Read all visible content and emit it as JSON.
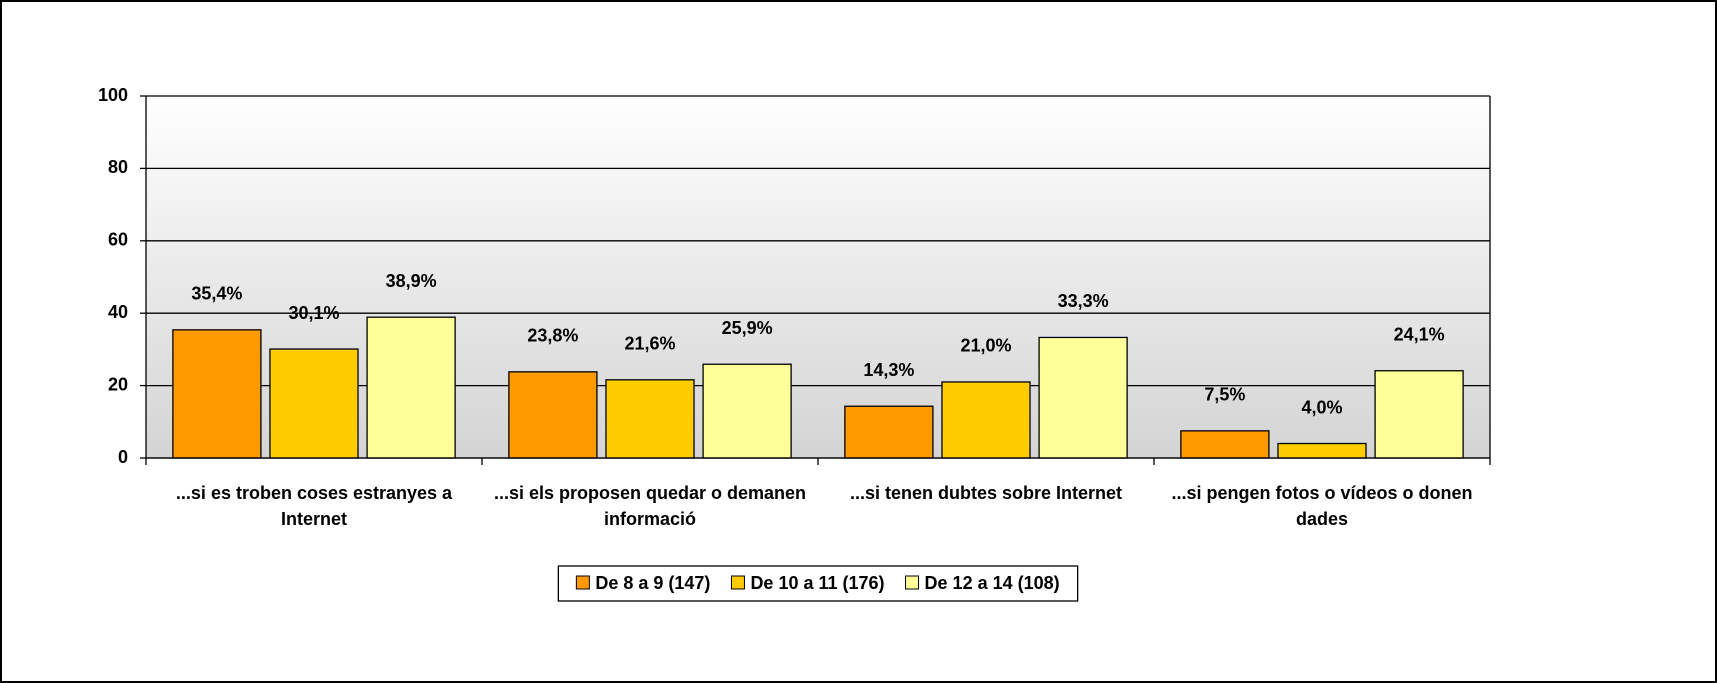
{
  "chart_data": {
    "type": "bar",
    "categories": [
      "...si es troben coses estranyes a Internet",
      "...si els proposen quedar o demanen informació",
      "...si tenen dubtes sobre Internet",
      "...si pengen fotos o vídeos o donen dades"
    ],
    "series": [
      {
        "name": "De 8 a 9 (147)",
        "color": "#ff9900",
        "values": [
          35.4,
          23.8,
          14.3,
          7.5
        ],
        "value_labels": [
          "35,4%",
          "23,8%",
          "14,3%",
          "7,5%"
        ]
      },
      {
        "name": "De 10 a 11 (176)",
        "color": "#ffcc00",
        "values": [
          30.1,
          21.6,
          21.0,
          4.0
        ],
        "value_labels": [
          "30,1%",
          "21,6%",
          "21,0%",
          "4,0%"
        ]
      },
      {
        "name": "De 12 a 14 (108)",
        "color": "#ffff99",
        "values": [
          38.9,
          25.9,
          33.3,
          24.1
        ],
        "value_labels": [
          "38,9%",
          "25,9%",
          "33,3%",
          "24,1%"
        ]
      }
    ],
    "ylim": [
      0,
      100
    ],
    "yticks": [
      0,
      20,
      40,
      60,
      80,
      100
    ],
    "grid": true,
    "legend": "bottom"
  }
}
